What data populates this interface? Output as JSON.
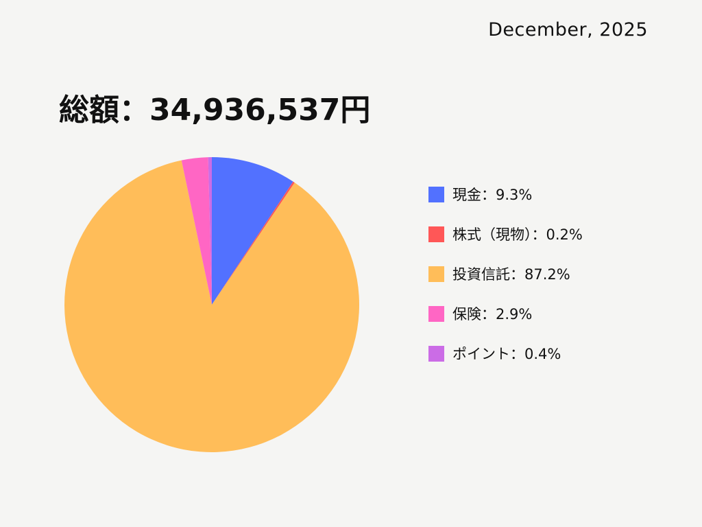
{
  "header": {
    "date": "December, 2025",
    "total_label": "総額：34,936,537円"
  },
  "chart_data": {
    "type": "pie",
    "title": "総額：34,936,537円",
    "slices": [
      {
        "name": "現金",
        "value": 9.3,
        "label": "現金：9.3%",
        "color": "#5271ff"
      },
      {
        "name": "株式（現物）",
        "value": 0.2,
        "label": "株式（現物）：0.2%",
        "color": "#ff5757"
      },
      {
        "name": "投資信託",
        "value": 87.2,
        "label": "投資信託：87.2%",
        "color": "#ffbd59"
      },
      {
        "name": "保険",
        "value": 2.9,
        "label": "保険：2.9%",
        "color": "#ff66c4"
      },
      {
        "name": "ポイント",
        "value": 0.4,
        "label": "ポイント：0.4%",
        "color": "#cb6ce6"
      }
    ],
    "start_angle_deg": 0,
    "direction": "clockwise",
    "legend_position": "right"
  }
}
